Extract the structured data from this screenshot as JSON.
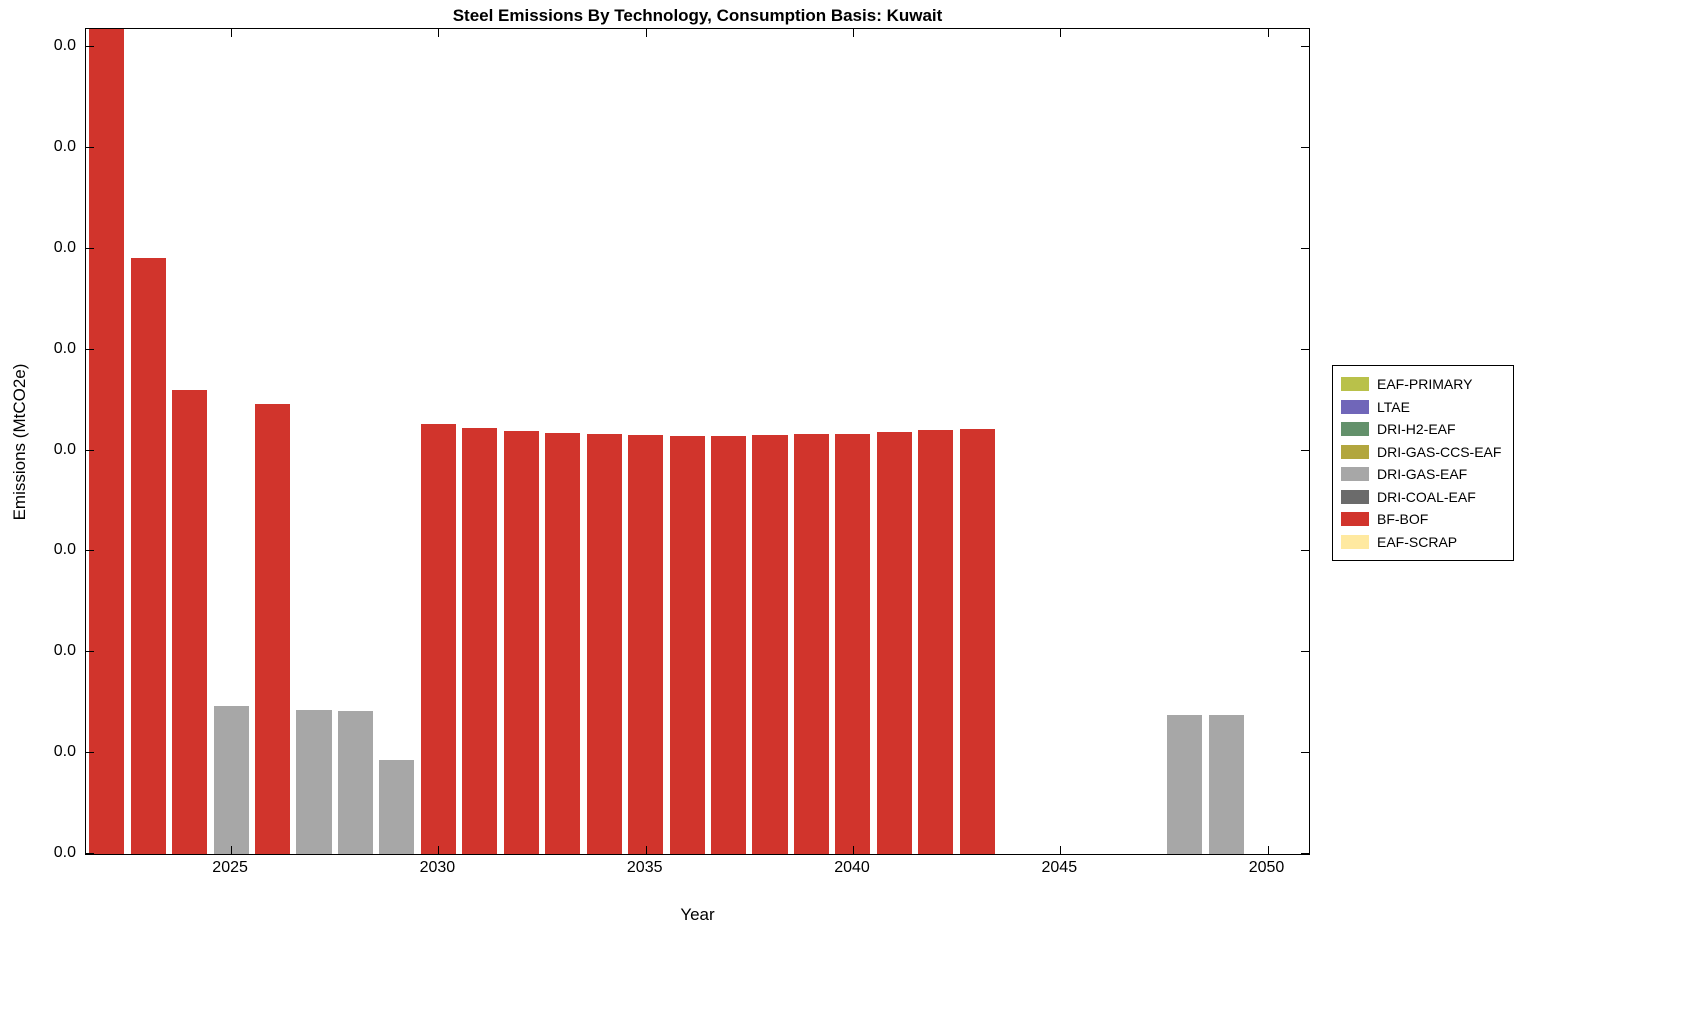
{
  "chart_data": {
    "type": "bar",
    "title": "Steel Emissions By Technology, Consumption Basis: Kuwait",
    "xlabel": "Year",
    "ylabel": "Emissions (MtCO2e)",
    "x_ticks": [
      "2025",
      "2030",
      "2035",
      "2040",
      "2045",
      "2050"
    ],
    "y_tick_labels": [
      "0.0",
      "0.0",
      "0.0",
      "0.0",
      "0.0",
      "0.0",
      "0.0",
      "0.0",
      "0.0"
    ],
    "y_tick_top_fraction": 0.978,
    "x_range": [
      2021.5,
      2051.0
    ],
    "bar_width_years": 0.85,
    "grid": false,
    "y_axis_note": "All y-axis tick labels display 0.0; bar heights are recorded as fractions of the full y-axis height (top bar clipped at axis top)",
    "series": [
      {
        "name": "BF-BOF",
        "color": "#d1342c",
        "bars": [
          [
            2022,
            1.0
          ],
          [
            2023,
            0.722
          ],
          [
            2024,
            0.563
          ],
          [
            2026,
            0.545
          ],
          [
            2030,
            0.521
          ],
          [
            2031,
            0.516
          ],
          [
            2032,
            0.513
          ],
          [
            2033,
            0.51
          ],
          [
            2034,
            0.509
          ],
          [
            2035,
            0.508
          ],
          [
            2036,
            0.507
          ],
          [
            2037,
            0.507
          ],
          [
            2038,
            0.508
          ],
          [
            2039,
            0.509
          ],
          [
            2040,
            0.509
          ],
          [
            2041,
            0.511
          ],
          [
            2042,
            0.514
          ],
          [
            2043,
            0.515
          ]
        ]
      },
      {
        "name": "DRI-GAS-EAF",
        "color": "#a7a7a7",
        "bars": [
          [
            2025,
            0.18
          ],
          [
            2027,
            0.175
          ],
          [
            2028,
            0.173
          ],
          [
            2029,
            0.114
          ],
          [
            2048,
            0.168
          ],
          [
            2049,
            0.168
          ]
        ]
      }
    ],
    "legend": {
      "position": "right-outside",
      "entries": [
        {
          "label": "EAF-PRIMARY",
          "color": "#b9c14a"
        },
        {
          "label": "LTAE",
          "color": "#7066b9"
        },
        {
          "label": "DRI-H2-EAF",
          "color": "#63916b"
        },
        {
          "label": "DRI-GAS-CCS-EAF",
          "color": "#b2a63e"
        },
        {
          "label": "DRI-GAS-EAF",
          "color": "#a7a7a7"
        },
        {
          "label": "DRI-COAL-EAF",
          "color": "#6b6b6b"
        },
        {
          "label": "BF-BOF",
          "color": "#d1342c"
        },
        {
          "label": "EAF-SCRAP",
          "color": "#ffe9a0"
        }
      ]
    }
  }
}
